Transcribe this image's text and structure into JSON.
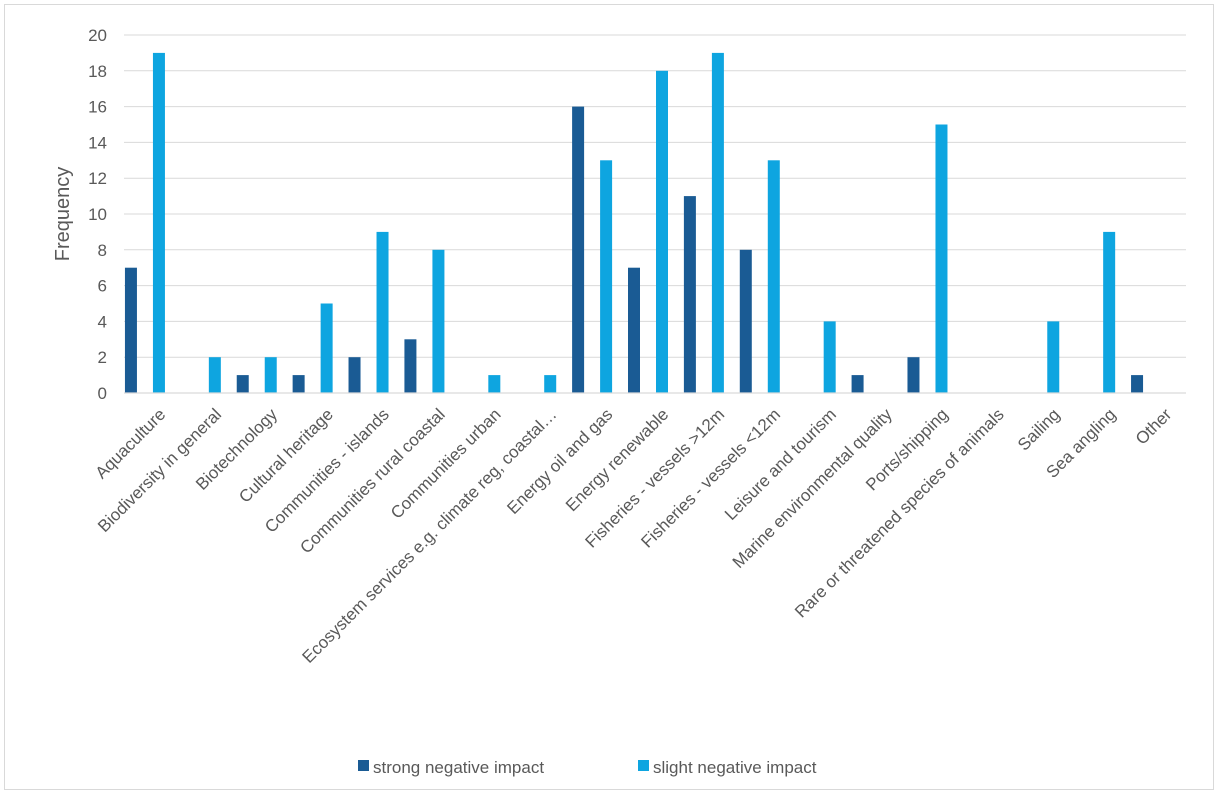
{
  "chart_data": {
    "type": "bar",
    "title": "",
    "xlabel": "",
    "ylabel": "Frequency",
    "ylim": [
      0,
      20
    ],
    "yticks": [
      0,
      2,
      4,
      6,
      8,
      10,
      12,
      14,
      16,
      18,
      20
    ],
    "grid": "horizontal",
    "legend_position": "bottom",
    "categories": [
      "Aquaculture",
      "Biodiversity in general",
      "Biotechnology",
      "Cultural heritage",
      "Communities - islands",
      "Communities rural coastal",
      "Communities urban",
      "Ecosystem services e.g. climate reg, coastal…",
      "Energy oil and gas",
      "Energy renewable",
      "Fisheries - vessels >12m",
      "Fisheries - vessels <12m",
      "Leisure and tourism",
      "Marine environmental quality",
      "Ports/shipping",
      "Rare or threatened species of animals",
      "Sailing",
      "Sea angling",
      "Other"
    ],
    "series": [
      {
        "name": "strong negative impact",
        "color": "#1a5b94",
        "values": [
          7,
          0,
          1,
          1,
          2,
          3,
          0,
          0,
          16,
          7,
          11,
          8,
          0,
          1,
          2,
          0,
          0,
          0,
          1
        ]
      },
      {
        "name": "slight negative impact",
        "color": "#0ea5e0",
        "values": [
          19,
          2,
          2,
          5,
          9,
          8,
          1,
          1,
          13,
          18,
          19,
          13,
          4,
          0,
          15,
          0,
          4,
          9,
          0
        ]
      }
    ]
  }
}
